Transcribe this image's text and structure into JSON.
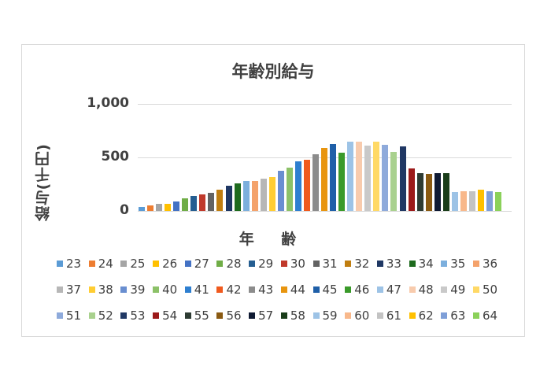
{
  "chart_data": {
    "type": "bar",
    "title": "年齢別給与",
    "xlabel": "年 齢",
    "ylabel": "給与(千円)",
    "ylim": [
      0,
      1000
    ],
    "yticks": [
      "0",
      "500",
      "1,000"
    ],
    "grid": true,
    "legend_position": "bottom",
    "categories": [
      "23",
      "24",
      "25",
      "26",
      "27",
      "28",
      "29",
      "30",
      "31",
      "32",
      "33",
      "34",
      "35",
      "36",
      "37",
      "38",
      "39",
      "40",
      "41",
      "42",
      "43",
      "44",
      "45",
      "46",
      "47",
      "48",
      "49",
      "50",
      "51",
      "52",
      "53",
      "54",
      "55",
      "56",
      "57",
      "58",
      "59",
      "60",
      "61",
      "62",
      "63",
      "64"
    ],
    "values": [
      40,
      54,
      64,
      68,
      86,
      118,
      137,
      157,
      171,
      199,
      233,
      257,
      279,
      279,
      299,
      316,
      377,
      402,
      461,
      478,
      529,
      590,
      627,
      546,
      649,
      649,
      610,
      647,
      615,
      551,
      603,
      397,
      353,
      346,
      355,
      355,
      176,
      184,
      186,
      196,
      182,
      176
    ],
    "colors": [
      "#5b9bd5",
      "#ed7d31",
      "#a5a5a5",
      "#ffc000",
      "#4472c4",
      "#70ad47",
      "#255e91",
      "#c0392b",
      "#636363",
      "#c07e10",
      "#1f3864",
      "#1e6b1e",
      "#7cafdd",
      "#f4a26b",
      "#b7b7b7",
      "#ffcd33",
      "#698ed0",
      "#8cc168",
      "#2e7fd0",
      "#f05a1e",
      "#8c8c8c",
      "#e8950f",
      "#1f5fa8",
      "#3a9a2a",
      "#9dc3e6",
      "#f8cbad",
      "#c9c9c9",
      "#ffd966",
      "#8eaadb",
      "#a9d18e",
      "#203864",
      "#9c1a1a",
      "#2e3b33",
      "#8a5a12",
      "#0f1a33",
      "#1a3d1a",
      "#9dc3e6",
      "#f8b88b",
      "#c3c3c3",
      "#ffc000",
      "#7f9fd8",
      "#8bd15a"
    ]
  }
}
